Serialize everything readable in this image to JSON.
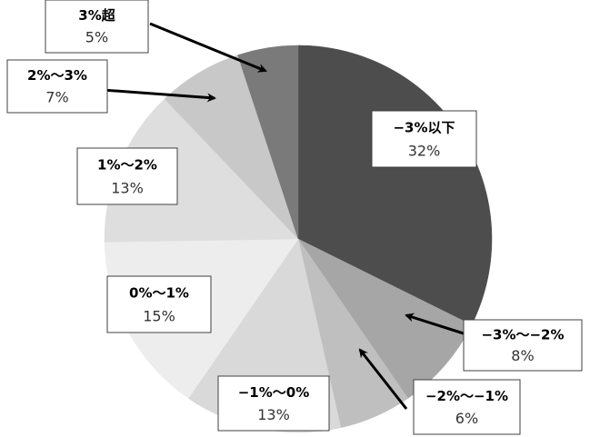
{
  "chart_data": {
    "type": "pie",
    "title": "",
    "slices": [
      {
        "label": "−3%以下",
        "value": 32,
        "value_label": "32%",
        "color": "#4d4d4d"
      },
      {
        "label": "−3%～−2%",
        "value": 8,
        "value_label": "8%",
        "color": "#a6a6a6"
      },
      {
        "label": "−2%～−1%",
        "value": 6,
        "value_label": "6%",
        "color": "#bfbfbf"
      },
      {
        "label": "−1%～0%",
        "value": 13,
        "value_label": "13%",
        "color": "#d9d9d9"
      },
      {
        "label": "0%～1%",
        "value": 15,
        "value_label": "15%",
        "color": "#ededed"
      },
      {
        "label": "1%～2%",
        "value": 13,
        "value_label": "13%",
        "color": "#dedede"
      },
      {
        "label": "2%～3%",
        "value": 7,
        "value_label": "7%",
        "color": "#c8c8c8"
      },
      {
        "label": "3%超",
        "value": 5,
        "value_label": "5%",
        "color": "#7a7a7a"
      }
    ],
    "start": "12 o'clock",
    "direction": "clockwise",
    "legend": "none"
  }
}
